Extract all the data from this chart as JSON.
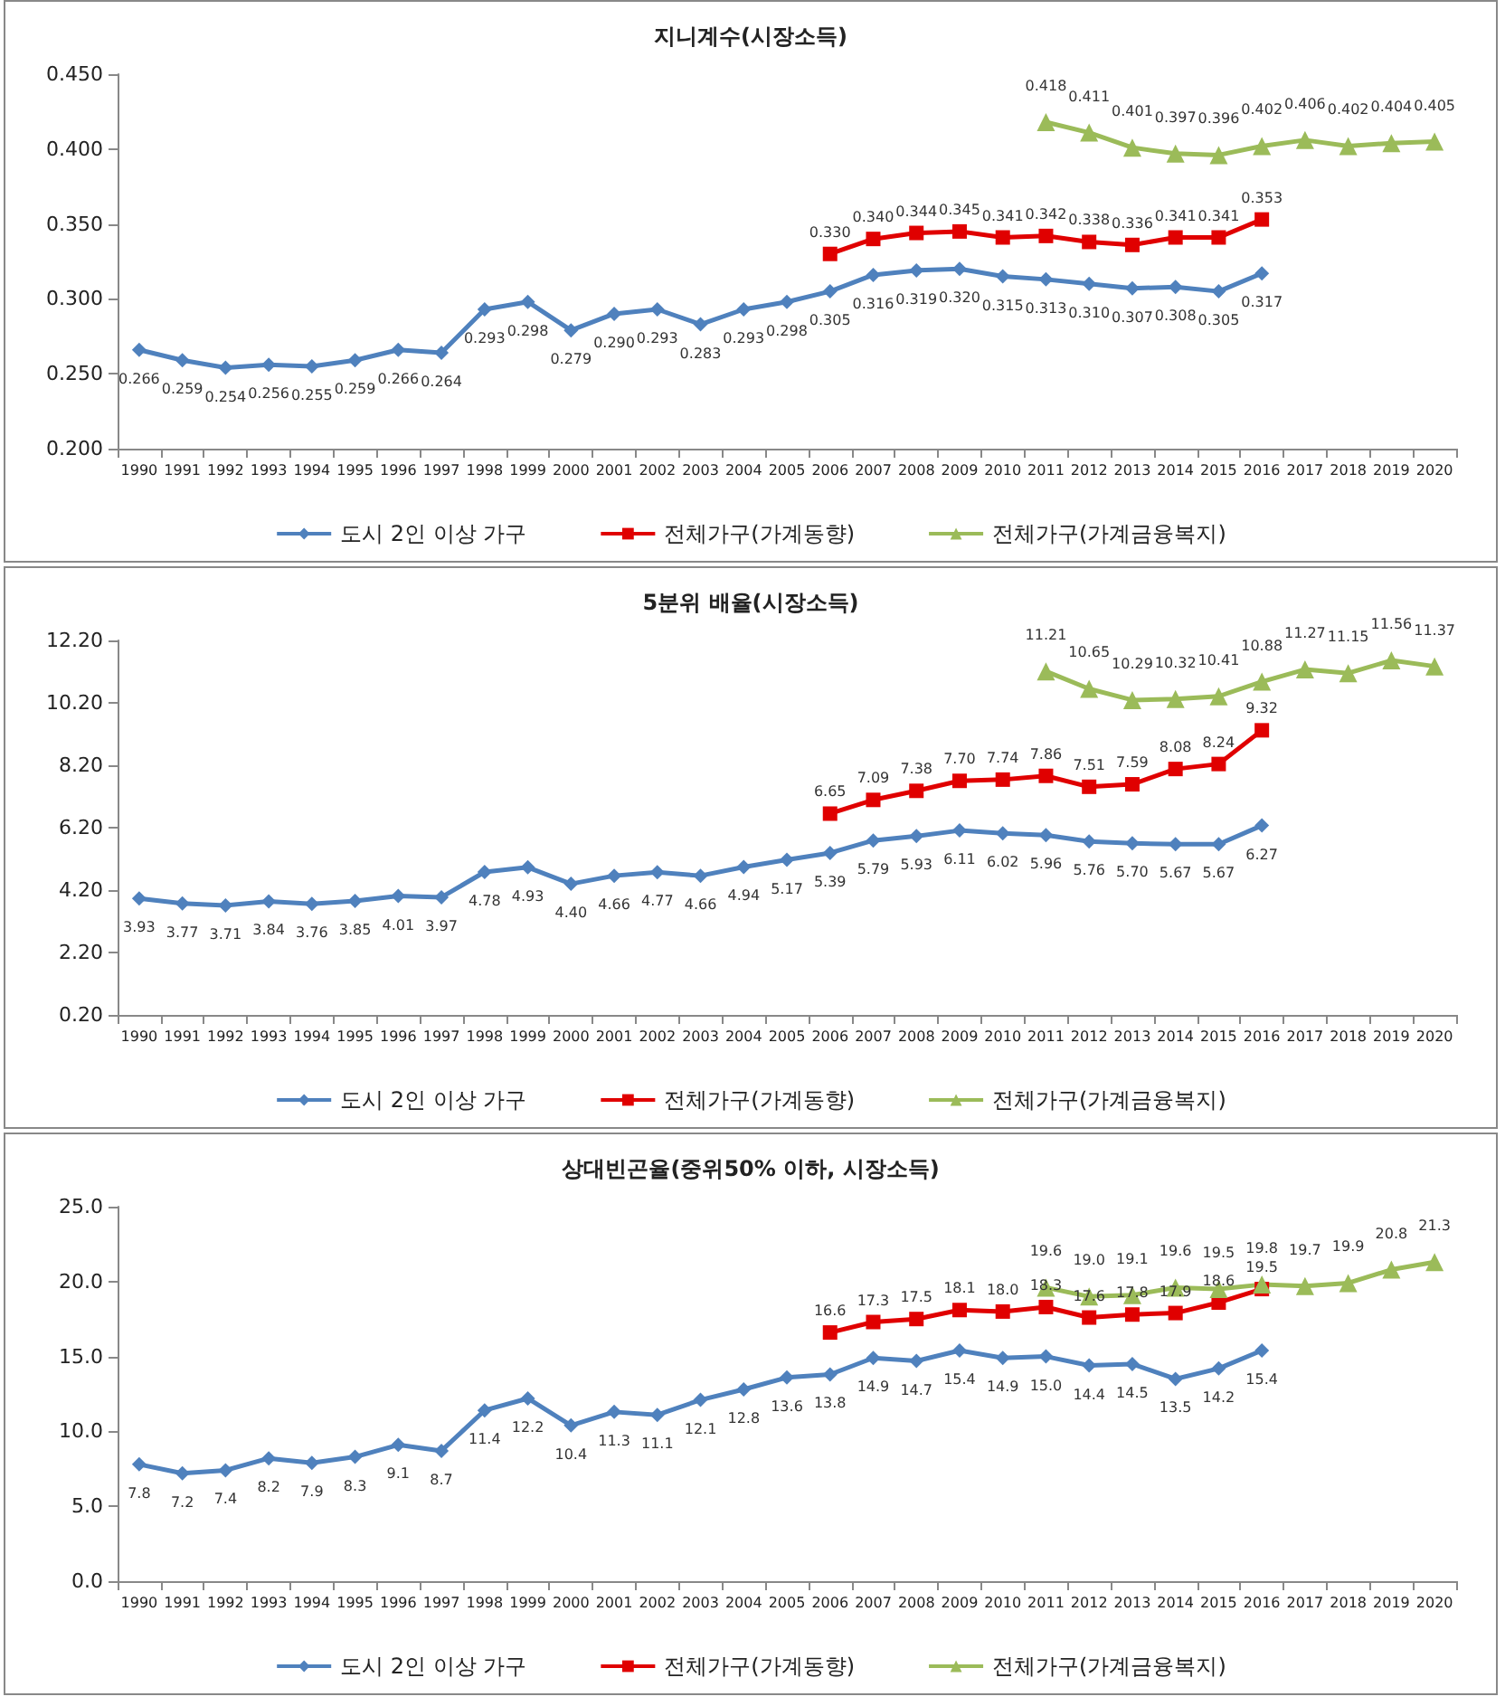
{
  "chart_data": [
    {
      "type": "line",
      "title": "지니계수(시장소득)",
      "legend": "bottom",
      "categories": [
        "1990",
        "1991",
        "1992",
        "1993",
        "1994",
        "1995",
        "1996",
        "1997",
        "1998",
        "1999",
        "2000",
        "2001",
        "2002",
        "2003",
        "2004",
        "2005",
        "2006",
        "2007",
        "2008",
        "2009",
        "2010",
        "2011",
        "2012",
        "2013",
        "2014",
        "2015",
        "2016",
        "2017",
        "2018",
        "2019",
        "2020"
      ],
      "ylim": [
        0.2,
        0.45
      ],
      "yticks": [
        {
          "value": 0.2,
          "label": "0.200"
        },
        {
          "value": 0.25,
          "label": "0.250"
        },
        {
          "value": 0.3,
          "label": "0.300"
        },
        {
          "value": 0.35,
          "label": "0.350"
        },
        {
          "value": 0.4,
          "label": "0.400"
        },
        {
          "value": 0.45,
          "label": "0.450"
        }
      ],
      "series": [
        {
          "name": "도시 2인 이상 가구",
          "color": "#4f81bd",
          "marker": "diamond",
          "values": [
            0.266,
            0.259,
            0.254,
            0.256,
            0.255,
            0.259,
            0.266,
            0.264,
            0.293,
            0.298,
            0.279,
            0.29,
            0.293,
            0.283,
            0.293,
            0.298,
            0.305,
            0.316,
            0.319,
            0.32,
            0.315,
            0.313,
            0.31,
            0.307,
            0.308,
            0.305,
            0.317,
            null,
            null,
            null,
            null
          ],
          "value_labels": [
            "0.266",
            "0.259",
            "0.254",
            "0.256",
            "0.255",
            "0.259",
            "0.266",
            "0.264",
            "0.293",
            "0.298",
            "0.279",
            "0.290",
            "0.293",
            "0.283",
            "0.293",
            "0.298",
            "0.305",
            "0.316",
            "0.319",
            "0.320",
            "0.315",
            "0.313",
            "0.310",
            "0.307",
            "0.308",
            "0.305",
            "0.317",
            null,
            null,
            null,
            null
          ]
        },
        {
          "name": "전체가구(가계동향)",
          "color": "#e00000",
          "marker": "square",
          "values": [
            null,
            null,
            null,
            null,
            null,
            null,
            null,
            null,
            null,
            null,
            null,
            null,
            null,
            null,
            null,
            null,
            0.33,
            0.34,
            0.344,
            0.345,
            0.341,
            0.342,
            0.338,
            0.336,
            0.341,
            0.341,
            0.353,
            null,
            null,
            null,
            null
          ],
          "value_labels": [
            null,
            null,
            null,
            null,
            null,
            null,
            null,
            null,
            null,
            null,
            null,
            null,
            null,
            null,
            null,
            null,
            "0.330",
            "0.340",
            "0.344",
            "0.345",
            "0.341",
            "0.342",
            "0.338",
            "0.336",
            "0.341",
            "0.341",
            "0.353",
            null,
            null,
            null,
            null
          ]
        },
        {
          "name": "전체가구(가계금융복지)",
          "color": "#9bbb59",
          "marker": "triangle",
          "values": [
            null,
            null,
            null,
            null,
            null,
            null,
            null,
            null,
            null,
            null,
            null,
            null,
            null,
            null,
            null,
            null,
            null,
            null,
            null,
            null,
            null,
            0.418,
            0.411,
            0.401,
            0.397,
            0.396,
            0.402,
            0.406,
            0.402,
            0.404,
            0.405
          ],
          "value_labels": [
            null,
            null,
            null,
            null,
            null,
            null,
            null,
            null,
            null,
            null,
            null,
            null,
            null,
            null,
            null,
            null,
            null,
            null,
            null,
            null,
            null,
            "0.418",
            "0.411",
            "0.401",
            "0.397",
            "0.396",
            "0.402",
            "0.406",
            "0.402",
            "0.404",
            "0.405"
          ]
        }
      ]
    },
    {
      "type": "line",
      "title": "5분위 배율(시장소득)",
      "legend": "bottom",
      "categories": [
        "1990",
        "1991",
        "1992",
        "1993",
        "1994",
        "1995",
        "1996",
        "1997",
        "1998",
        "1999",
        "2000",
        "2001",
        "2002",
        "2003",
        "2004",
        "2005",
        "2006",
        "2007",
        "2008",
        "2009",
        "2010",
        "2011",
        "2012",
        "2013",
        "2014",
        "2015",
        "2016",
        "2017",
        "2018",
        "2019",
        "2020"
      ],
      "ylim": [
        0.2,
        12.2
      ],
      "yticks": [
        {
          "value": 0.2,
          "label": "0.20"
        },
        {
          "value": 2.2,
          "label": "2.20"
        },
        {
          "value": 4.2,
          "label": "4.20"
        },
        {
          "value": 6.2,
          "label": "6.20"
        },
        {
          "value": 8.2,
          "label": "8.20"
        },
        {
          "value": 10.2,
          "label": "10.20"
        },
        {
          "value": 12.2,
          "label": "12.20"
        }
      ],
      "series": [
        {
          "name": "도시 2인 이상 가구",
          "color": "#4f81bd",
          "marker": "diamond",
          "values": [
            3.93,
            3.77,
            3.71,
            3.84,
            3.76,
            3.85,
            4.01,
            3.97,
            4.78,
            4.93,
            4.4,
            4.66,
            4.77,
            4.66,
            4.94,
            5.17,
            5.39,
            5.79,
            5.93,
            6.11,
            6.02,
            5.96,
            5.76,
            5.7,
            5.67,
            5.67,
            6.27,
            null,
            null,
            null,
            null
          ],
          "value_labels": [
            "3.93",
            "3.77",
            "3.71",
            "3.84",
            "3.76",
            "3.85",
            "4.01",
            "3.97",
            "4.78",
            "4.93",
            "4.40",
            "4.66",
            "4.77",
            "4.66",
            "4.94",
            "5.17",
            "5.39",
            "5.79",
            "5.93",
            "6.11",
            "6.02",
            "5.96",
            "5.76",
            "5.70",
            "5.67",
            "5.67",
            "6.27",
            null,
            null,
            null,
            null
          ]
        },
        {
          "name": "전체가구(가계동향)",
          "color": "#e00000",
          "marker": "square",
          "values": [
            null,
            null,
            null,
            null,
            null,
            null,
            null,
            null,
            null,
            null,
            null,
            null,
            null,
            null,
            null,
            null,
            6.65,
            7.09,
            7.38,
            7.7,
            7.74,
            7.86,
            7.51,
            7.59,
            8.08,
            8.24,
            9.32,
            null,
            null,
            null,
            null
          ],
          "value_labels": [
            null,
            null,
            null,
            null,
            null,
            null,
            null,
            null,
            null,
            null,
            null,
            null,
            null,
            null,
            null,
            null,
            "6.65",
            "7.09",
            "7.38",
            "7.70",
            "7.74",
            "7.86",
            "7.51",
            "7.59",
            "8.08",
            "8.24",
            "9.32",
            null,
            null,
            null,
            null
          ]
        },
        {
          "name": "전체가구(가계금융복지)",
          "color": "#9bbb59",
          "marker": "triangle",
          "values": [
            null,
            null,
            null,
            null,
            null,
            null,
            null,
            null,
            null,
            null,
            null,
            null,
            null,
            null,
            null,
            null,
            null,
            null,
            null,
            null,
            null,
            11.21,
            10.65,
            10.29,
            10.32,
            10.41,
            10.88,
            11.27,
            11.15,
            11.56,
            11.37
          ],
          "value_labels": [
            null,
            null,
            null,
            null,
            null,
            null,
            null,
            null,
            null,
            null,
            null,
            null,
            null,
            null,
            null,
            null,
            null,
            null,
            null,
            null,
            null,
            "11.21",
            "10.65",
            "10.29",
            "10.32",
            "10.41",
            "10.88",
            "11.27",
            "11.15",
            "11.56",
            "11.37"
          ]
        }
      ]
    },
    {
      "type": "line",
      "title": "상대빈곤율(중위50% 이하, 시장소득)",
      "legend": "bottom",
      "categories": [
        "1990",
        "1991",
        "1992",
        "1993",
        "1994",
        "1995",
        "1996",
        "1997",
        "1998",
        "1999",
        "2000",
        "2001",
        "2002",
        "2003",
        "2004",
        "2005",
        "2006",
        "2007",
        "2008",
        "2009",
        "2010",
        "2011",
        "2012",
        "2013",
        "2014",
        "2015",
        "2016",
        "2017",
        "2018",
        "2019",
        "2020"
      ],
      "ylim": [
        0,
        25
      ],
      "yticks": [
        {
          "value": 0,
          "label": "0.0"
        },
        {
          "value": 5,
          "label": "5.0"
        },
        {
          "value": 10,
          "label": "10.0"
        },
        {
          "value": 15,
          "label": "15.0"
        },
        {
          "value": 20,
          "label": "20.0"
        },
        {
          "value": 25,
          "label": "25.0"
        }
      ],
      "series": [
        {
          "name": "도시 2인 이상 가구",
          "color": "#4f81bd",
          "marker": "diamond",
          "values": [
            7.8,
            7.2,
            7.4,
            8.2,
            7.9,
            8.3,
            9.1,
            8.7,
            11.4,
            12.2,
            10.4,
            11.3,
            11.1,
            12.1,
            12.8,
            13.6,
            13.8,
            14.9,
            14.7,
            15.4,
            14.9,
            15.0,
            14.4,
            14.5,
            13.5,
            14.2,
            15.4,
            null,
            null,
            null,
            null
          ],
          "value_labels": [
            "7.8",
            "7.2",
            "7.4",
            "8.2",
            "7.9",
            "8.3",
            "9.1",
            "8.7",
            "11.4",
            "12.2",
            "10.4",
            "11.3",
            "11.1",
            "12.1",
            "12.8",
            "13.6",
            "13.8",
            "14.9",
            "14.7",
            "15.4",
            "14.9",
            "15.0",
            "14.4",
            "14.5",
            "13.5",
            "14.2",
            "15.4",
            null,
            null,
            null,
            null
          ]
        },
        {
          "name": "전체가구(가계동향)",
          "color": "#e00000",
          "marker": "square",
          "values": [
            null,
            null,
            null,
            null,
            null,
            null,
            null,
            null,
            null,
            null,
            null,
            null,
            null,
            null,
            null,
            null,
            16.6,
            17.3,
            17.5,
            18.1,
            18.0,
            18.3,
            17.6,
            17.8,
            17.9,
            18.6,
            19.5,
            null,
            null,
            null,
            null
          ],
          "value_labels": [
            null,
            null,
            null,
            null,
            null,
            null,
            null,
            null,
            null,
            null,
            null,
            null,
            null,
            null,
            null,
            null,
            "16.6",
            "17.3",
            "17.5",
            "18.1",
            "18.0",
            "18.3",
            "17.6",
            "17.8",
            "17.9",
            "18.6",
            "19.5",
            null,
            null,
            null,
            null
          ]
        },
        {
          "name": "전체가구(가계금융복지)",
          "color": "#9bbb59",
          "marker": "triangle",
          "values": [
            null,
            null,
            null,
            null,
            null,
            null,
            null,
            null,
            null,
            null,
            null,
            null,
            null,
            null,
            null,
            null,
            null,
            null,
            null,
            null,
            null,
            19.6,
            19.0,
            19.1,
            19.6,
            19.5,
            19.8,
            19.7,
            19.9,
            20.8,
            21.3
          ],
          "value_labels": [
            null,
            null,
            null,
            null,
            null,
            null,
            null,
            null,
            null,
            null,
            null,
            null,
            null,
            null,
            null,
            null,
            null,
            null,
            null,
            null,
            null,
            "19.6",
            "19.0",
            "19.1",
            "19.6",
            "19.5",
            "19.8",
            "19.7",
            "19.9",
            "20.8",
            "21.3"
          ]
        }
      ]
    }
  ]
}
